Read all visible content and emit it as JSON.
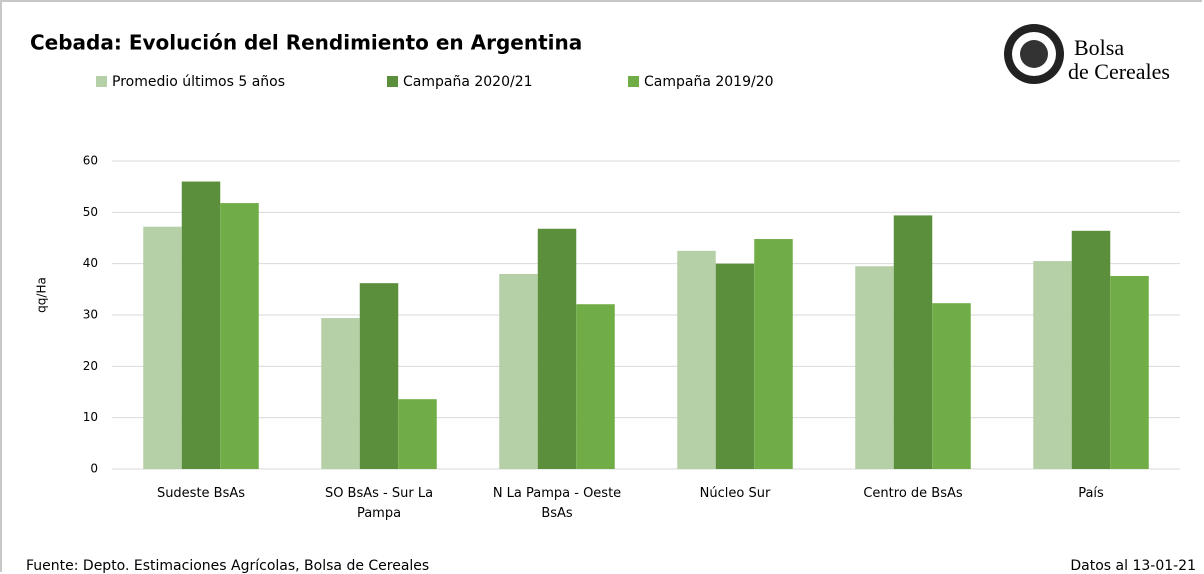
{
  "chart_data": {
    "type": "bar",
    "title": "Cebada: Evolución del Rendimiento en Argentina",
    "y_label": "qq/Ha",
    "categories": [
      "Sudeste BsAs",
      "SO BsAs - Sur La Pampa",
      "N La Pampa - Oeste BsAs",
      "Núcleo Sur",
      "Centro de BsAs",
      "País"
    ],
    "series": [
      {
        "name": "Promedio últimos 5 años",
        "color": "#b5cfa6",
        "values": [
          47.2,
          29.4,
          38.0,
          42.5,
          39.5,
          40.5
        ]
      },
      {
        "name": "Campaña 2020/21",
        "color": "#5b8f3b",
        "values": [
          56.0,
          36.2,
          46.8,
          40.0,
          49.4,
          46.4
        ]
      },
      {
        "name": "Campaña 2019/20",
        "color": "#70ad47",
        "values": [
          51.8,
          13.6,
          32.1,
          44.8,
          32.3,
          37.6
        ]
      }
    ],
    "ylim": [
      0,
      60
    ],
    "yticks": [
      0,
      10,
      20,
      30,
      40,
      50,
      60
    ],
    "grid": true,
    "source": "Fuente: Depto. Estimaciones Agrícolas, Bolsa de Cereales",
    "date_note": "Datos al 13-01-21",
    "logo": [
      "Bolsa",
      "de Cereales"
    ]
  }
}
